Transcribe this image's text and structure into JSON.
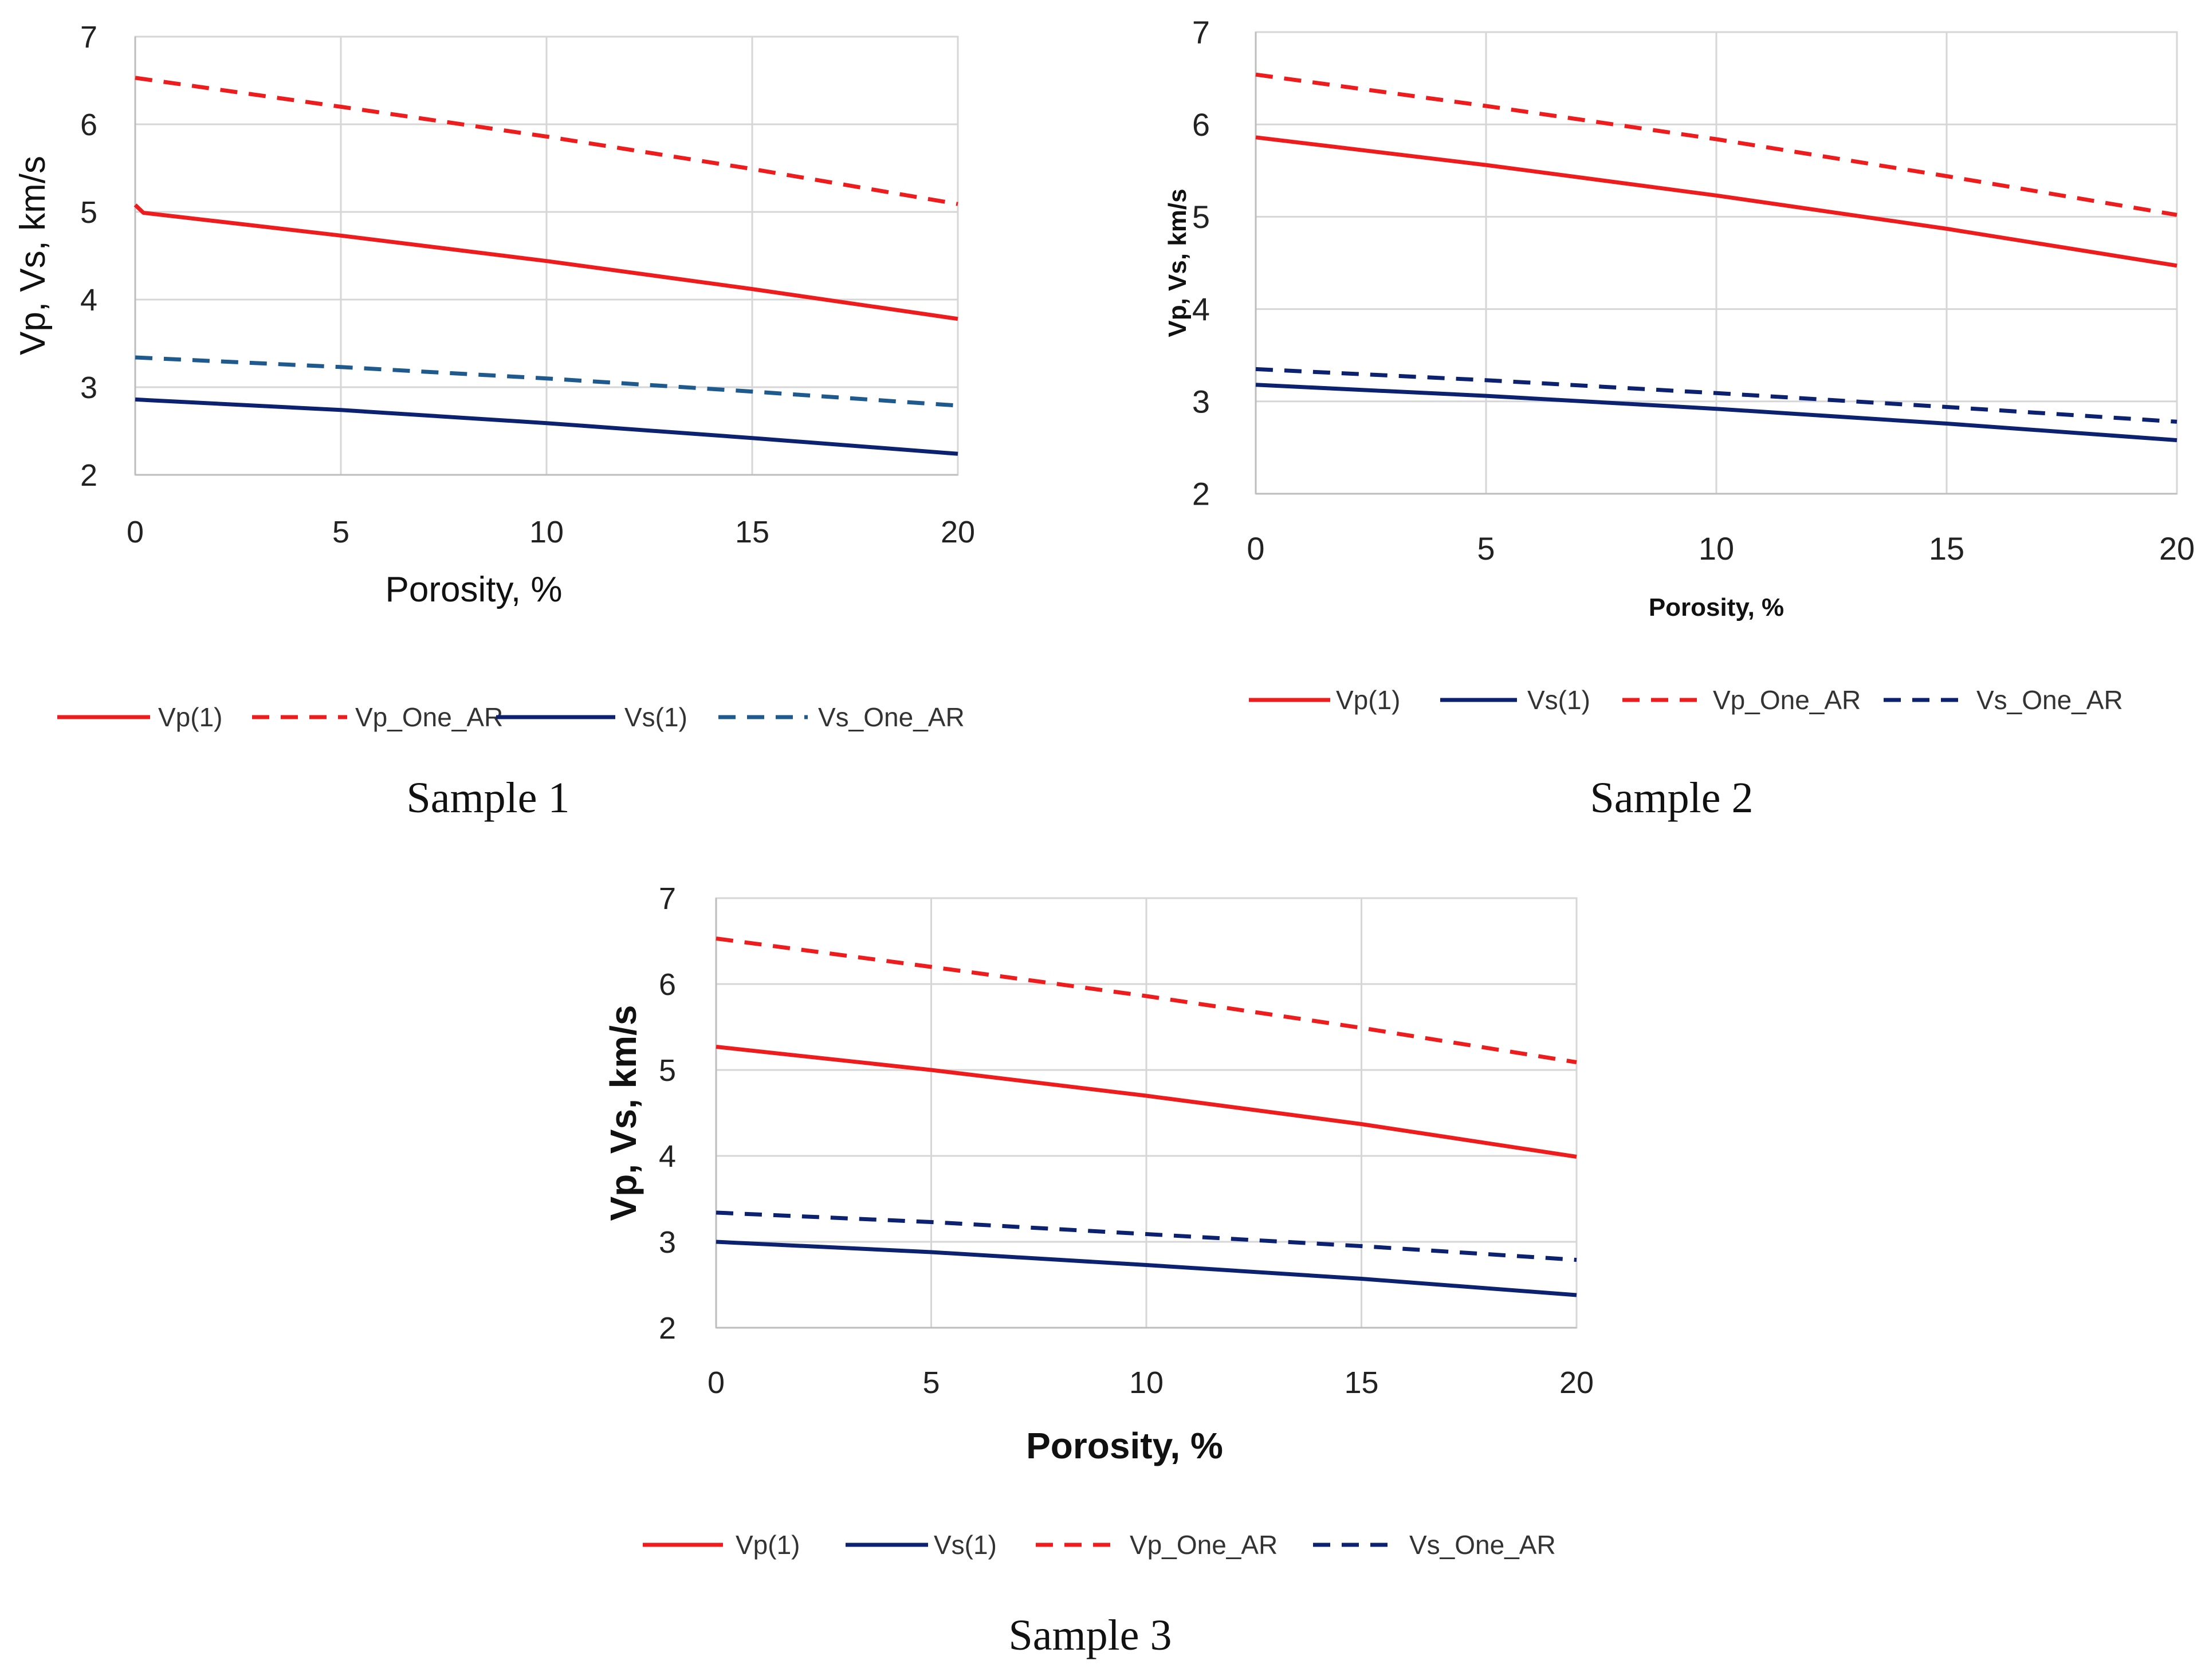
{
  "chart_data": [
    {
      "type": "line",
      "caption": "Sample 1",
      "xlabel": "Porosity, %",
      "ylabel": "Vp, Vs, km/s",
      "xlim": [
        0,
        20
      ],
      "ylim": [
        2,
        7
      ],
      "xticks": [
        "0",
        "5",
        "10",
        "15",
        "20"
      ],
      "yticks": [
        "2",
        "3",
        "4",
        "5",
        "6",
        "7"
      ],
      "grid": true,
      "legend_position": "bottom",
      "legend_order": [
        "Vp(1)",
        "Vp_One_AR",
        "Vs(1)",
        "Vs_One_AR"
      ],
      "series": [
        {
          "name": "Vp(1)",
          "color": "#ee1c1c",
          "dash": "solid",
          "x": [
            0,
            0.2,
            5,
            10,
            15,
            20
          ],
          "values": [
            5.08,
            4.99,
            4.73,
            4.44,
            4.12,
            3.78
          ]
        },
        {
          "name": "Vp_One_AR",
          "color": "#ee1c1c",
          "dash": "dashed",
          "x": [
            0,
            5,
            10,
            15,
            20
          ],
          "values": [
            6.53,
            6.2,
            5.86,
            5.49,
            5.09
          ]
        },
        {
          "name": "Vs(1)",
          "color": "#0c2270",
          "dash": "solid",
          "x": [
            0,
            5,
            10,
            15,
            20
          ],
          "values": [
            2.86,
            2.74,
            2.59,
            2.42,
            2.24
          ]
        },
        {
          "name": "Vs_One_AR",
          "color": "#1f5a8f",
          "dash": "dashed",
          "x": [
            0,
            5,
            10,
            15,
            20
          ],
          "values": [
            3.34,
            3.23,
            3.1,
            2.95,
            2.79
          ]
        }
      ]
    },
    {
      "type": "line",
      "caption": "Sample 2",
      "xlabel": "Porosity, %",
      "ylabel": "Vp, Vs, km/s",
      "xlim": [
        0,
        20
      ],
      "ylim": [
        2,
        7
      ],
      "xticks": [
        "0",
        "5",
        "10",
        "15",
        "20"
      ],
      "yticks": [
        "2",
        "3",
        "4",
        "5",
        "6",
        "7"
      ],
      "grid": true,
      "legend_position": "bottom",
      "legend_order": [
        "Vp(1)",
        "Vs(1)",
        "Vp_One_AR",
        "Vs_One_AR"
      ],
      "series": [
        {
          "name": "Vp(1)",
          "color": "#ee1c1c",
          "dash": "solid",
          "x": [
            0,
            5,
            10,
            15,
            20
          ],
          "values": [
            5.86,
            5.56,
            5.23,
            4.87,
            4.47
          ]
        },
        {
          "name": "Vs(1)",
          "color": "#0c2270",
          "dash": "solid",
          "x": [
            0,
            5,
            10,
            15,
            20
          ],
          "values": [
            3.18,
            3.06,
            2.92,
            2.76,
            2.58
          ]
        },
        {
          "name": "Vp_One_AR",
          "color": "#ee1c1c",
          "dash": "dashed",
          "x": [
            0,
            5,
            10,
            15,
            20
          ],
          "values": [
            6.54,
            6.2,
            5.84,
            5.44,
            5.02
          ]
        },
        {
          "name": "Vs_One_AR",
          "color": "#0c2270",
          "dash": "dashed",
          "x": [
            0,
            5,
            10,
            15,
            20
          ],
          "values": [
            3.35,
            3.23,
            3.09,
            2.94,
            2.78
          ]
        }
      ]
    },
    {
      "type": "line",
      "caption": "Sample 3",
      "xlabel": "Porosity, %",
      "ylabel": "Vp, Vs, km/s",
      "xlim": [
        0,
        20
      ],
      "ylim": [
        2,
        7
      ],
      "xticks": [
        "0",
        "5",
        "10",
        "15",
        "20"
      ],
      "yticks": [
        "2",
        "3",
        "4",
        "5",
        "6",
        "7"
      ],
      "grid": true,
      "legend_position": "bottom",
      "legend_order": [
        "Vp(1)",
        "Vs(1)",
        "Vp_One_AR",
        "Vs_One_AR"
      ],
      "series": [
        {
          "name": "Vp(1)",
          "color": "#ee1c1c",
          "dash": "solid",
          "x": [
            0,
            5,
            10,
            15,
            20
          ],
          "values": [
            5.27,
            5.0,
            4.7,
            4.37,
            3.99
          ]
        },
        {
          "name": "Vs(1)",
          "color": "#0c2270",
          "dash": "solid",
          "x": [
            0,
            5,
            10,
            15,
            20
          ],
          "values": [
            3.0,
            2.88,
            2.73,
            2.57,
            2.38
          ]
        },
        {
          "name": "Vp_One_AR",
          "color": "#ee1c1c",
          "dash": "dashed",
          "x": [
            0,
            5,
            10,
            15,
            20
          ],
          "values": [
            6.53,
            6.2,
            5.86,
            5.49,
            5.09
          ]
        },
        {
          "name": "Vs_One_AR",
          "color": "#0c2270",
          "dash": "dashed",
          "x": [
            0,
            5,
            10,
            15,
            20
          ],
          "values": [
            3.34,
            3.23,
            3.09,
            2.95,
            2.79
          ]
        }
      ]
    }
  ]
}
